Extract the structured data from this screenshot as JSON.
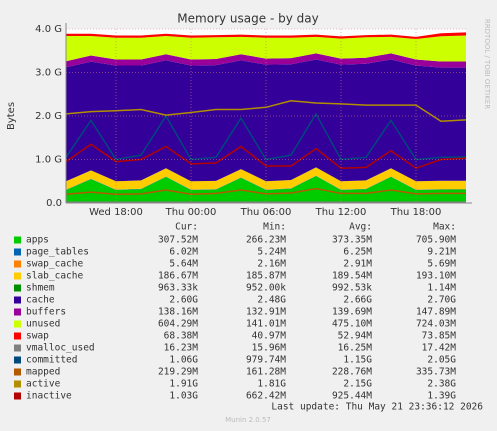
{
  "chart_data": {
    "type": "area",
    "title": "Memory usage - by day",
    "y_label": "Bytes",
    "side_text": "RRDTOOL / TOBI OETIKER",
    "categories": [
      null,
      null,
      "Wed 18:00",
      null,
      null,
      "Thu 00:00",
      null,
      null,
      "Thu 06:00",
      null,
      null,
      "Thu 12:00",
      null,
      null,
      "Thu 18:00",
      null,
      null
    ],
    "ylim": [
      0,
      4
    ],
    "yticks": [
      {
        "value": 0,
        "label": "0.0"
      },
      {
        "value": 1,
        "label": "1.0 G"
      },
      {
        "value": 2,
        "label": "2.0 G"
      },
      {
        "value": 3,
        "label": "3.0 G"
      },
      {
        "value": 4,
        "label": "4.0 G"
      }
    ],
    "grid": true,
    "legend_headers": [
      "Cur:",
      "Min:",
      "Avg:",
      "Max:"
    ],
    "series": [
      {
        "name": "apps",
        "color": "#00cc00",
        "style": "area",
        "stats": [
          "307.52M",
          "266.23M",
          "373.35M",
          "705.90M"
        ],
        "values": [
          0.3,
          0.55,
          0.3,
          0.32,
          0.6,
          0.3,
          0.31,
          0.58,
          0.3,
          0.33,
          0.62,
          0.3,
          0.32,
          0.6,
          0.3,
          0.31,
          0.31
        ]
      },
      {
        "name": "page_tables",
        "color": "#0066b3",
        "style": "area",
        "stats": [
          "6.02M",
          "5.24M",
          "6.25M",
          "9.21M"
        ],
        "values": [
          0.006,
          0.006,
          0.006,
          0.006,
          0.006,
          0.006,
          0.006,
          0.006,
          0.006,
          0.006,
          0.006,
          0.006,
          0.006,
          0.006,
          0.006,
          0.006,
          0.006
        ]
      },
      {
        "name": "swap_cache",
        "color": "#ff8000",
        "style": "area",
        "stats": [
          "5.64M",
          "2.16M",
          "2.91M",
          "5.69M"
        ],
        "values": [
          0.003,
          0.003,
          0.003,
          0.003,
          0.003,
          0.003,
          0.003,
          0.003,
          0.003,
          0.003,
          0.003,
          0.003,
          0.003,
          0.003,
          0.003,
          0.005,
          0.005
        ]
      },
      {
        "name": "slab_cache",
        "color": "#ffcc00",
        "style": "area",
        "stats": [
          "186.67M",
          "185.87M",
          "189.54M",
          "193.10M"
        ],
        "values": [
          0.19,
          0.19,
          0.19,
          0.19,
          0.19,
          0.19,
          0.19,
          0.19,
          0.19,
          0.19,
          0.19,
          0.19,
          0.19,
          0.19,
          0.19,
          0.19,
          0.19
        ]
      },
      {
        "name": "shmem",
        "color": "#008f00",
        "style": "area",
        "stats": [
          "963.33k",
          "952.00k",
          "992.53k",
          "1.14M"
        ],
        "values": [
          0.001,
          0.001,
          0.001,
          0.001,
          0.001,
          0.001,
          0.001,
          0.001,
          0.001,
          0.001,
          0.001,
          0.001,
          0.001,
          0.001,
          0.001,
          0.001,
          0.001
        ]
      },
      {
        "name": "cache",
        "color": "#330099",
        "style": "area",
        "stats": [
          "2.60G",
          "2.48G",
          "2.66G",
          "2.70G"
        ],
        "values": [
          2.62,
          2.5,
          2.66,
          2.64,
          2.48,
          2.66,
          2.66,
          2.5,
          2.68,
          2.66,
          2.48,
          2.68,
          2.68,
          2.5,
          2.66,
          2.6,
          2.6
        ]
      },
      {
        "name": "buffers",
        "color": "#990099",
        "style": "area",
        "stats": [
          "138.16M",
          "132.91M",
          "139.69M",
          "147.89M"
        ],
        "values": [
          0.14,
          0.14,
          0.14,
          0.14,
          0.14,
          0.14,
          0.14,
          0.14,
          0.14,
          0.14,
          0.14,
          0.14,
          0.14,
          0.14,
          0.14,
          0.14,
          0.14
        ]
      },
      {
        "name": "unused",
        "color": "#ccff00",
        "style": "area",
        "stats": [
          "604.29M",
          "141.01M",
          "475.10M",
          "724.03M"
        ],
        "values": [
          0.58,
          0.45,
          0.5,
          0.5,
          0.42,
          0.5,
          0.5,
          0.4,
          0.48,
          0.47,
          0.38,
          0.46,
          0.47,
          0.38,
          0.47,
          0.58,
          0.6
        ]
      },
      {
        "name": "swap",
        "color": "#ff0000",
        "style": "area",
        "stats": [
          "68.38M",
          "40.97M",
          "52.94M",
          "73.85M"
        ],
        "values": [
          0.05,
          0.05,
          0.05,
          0.05,
          0.05,
          0.05,
          0.05,
          0.05,
          0.05,
          0.05,
          0.05,
          0.05,
          0.05,
          0.05,
          0.05,
          0.07,
          0.07
        ]
      },
      {
        "name": "vmalloc_used",
        "color": "#808080",
        "style": "line",
        "stats": [
          "16.23M",
          "15.96M",
          "16.25M",
          "17.42M"
        ],
        "values": [
          0.016,
          0.016,
          0.016,
          0.016,
          0.016,
          0.016,
          0.016,
          0.016,
          0.016,
          0.016,
          0.016,
          0.016,
          0.016,
          0.016,
          0.016,
          0.016,
          0.016
        ]
      },
      {
        "name": "committed",
        "color": "#00487d",
        "style": "line",
        "stats": [
          "1.06G",
          "979.74M",
          "1.15G",
          "2.05G"
        ],
        "values": [
          1.05,
          1.9,
          1.0,
          1.1,
          2.0,
          1.0,
          1.05,
          1.95,
          1.0,
          1.1,
          2.05,
          1.0,
          1.05,
          1.9,
          1.0,
          1.05,
          1.06
        ]
      },
      {
        "name": "mapped",
        "color": "#b35a00",
        "style": "line",
        "stats": [
          "219.29M",
          "161.28M",
          "228.76M",
          "335.73M"
        ],
        "values": [
          0.2,
          0.25,
          0.2,
          0.21,
          0.3,
          0.2,
          0.22,
          0.3,
          0.21,
          0.23,
          0.33,
          0.22,
          0.22,
          0.3,
          0.21,
          0.22,
          0.22
        ]
      },
      {
        "name": "active",
        "color": "#b38f00",
        "style": "line",
        "stats": [
          "1.91G",
          "1.81G",
          "2.15G",
          "2.38G"
        ],
        "values": [
          2.05,
          2.1,
          2.12,
          2.15,
          2.02,
          2.08,
          2.15,
          2.15,
          2.2,
          2.35,
          2.3,
          2.28,
          2.25,
          2.25,
          2.25,
          1.88,
          1.91
        ]
      },
      {
        "name": "inactive",
        "color": "#b30000",
        "style": "line",
        "stats": [
          "1.03G",
          "662.42M",
          "925.44M",
          "1.39G"
        ],
        "values": [
          0.95,
          1.35,
          0.95,
          1.0,
          1.3,
          0.9,
          0.92,
          1.3,
          0.85,
          0.85,
          1.25,
          0.8,
          0.82,
          1.2,
          0.8,
          1.0,
          1.03
        ]
      }
    ],
    "last_update": "Last update: Thu May 21 23:36:12 2026",
    "version": "Munin 2.0.57"
  }
}
